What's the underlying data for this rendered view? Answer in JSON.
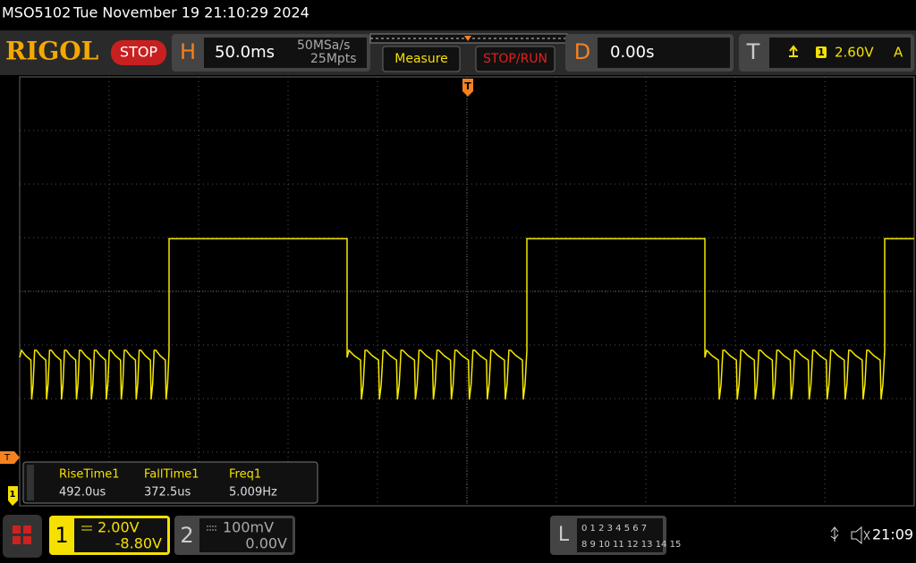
{
  "status_bar": {
    "model": "MSO5102",
    "datetime": "Tue November 19 21:10:29 2024"
  },
  "toolbar": {
    "brand": "RIGOL",
    "run_state": "STOP",
    "horizontal": {
      "label": "H",
      "timebase": "50.0ms",
      "sample_rate": "50MSa/s",
      "memory_depth": "25Mpts"
    },
    "measure_button": "Measure",
    "stop_run_button": "STOP/RUN",
    "delay": {
      "label": "D",
      "value": "0.00s"
    },
    "trigger": {
      "label": "T",
      "source": "1",
      "level": "2.60V",
      "mode": "A"
    }
  },
  "markers": {
    "trigger_position": "T",
    "trigger_level": "T",
    "channel1": "1"
  },
  "measurements": [
    {
      "name": "RiseTime1",
      "value": "492.0us"
    },
    {
      "name": "FallTime1",
      "value": "372.5us"
    },
    {
      "name": "Freq1",
      "value": "5.009Hz"
    }
  ],
  "channels": [
    {
      "number": "1",
      "scale": "2.00V",
      "offset": "-8.80V"
    },
    {
      "number": "2",
      "scale": "100mV",
      "offset": "0.00V"
    }
  ],
  "logic": {
    "label": "L",
    "row1": "0 1 2 3  4 5 6 7",
    "row2": "8 9 10 11 12 13 14 15"
  },
  "clock": "21:09"
}
